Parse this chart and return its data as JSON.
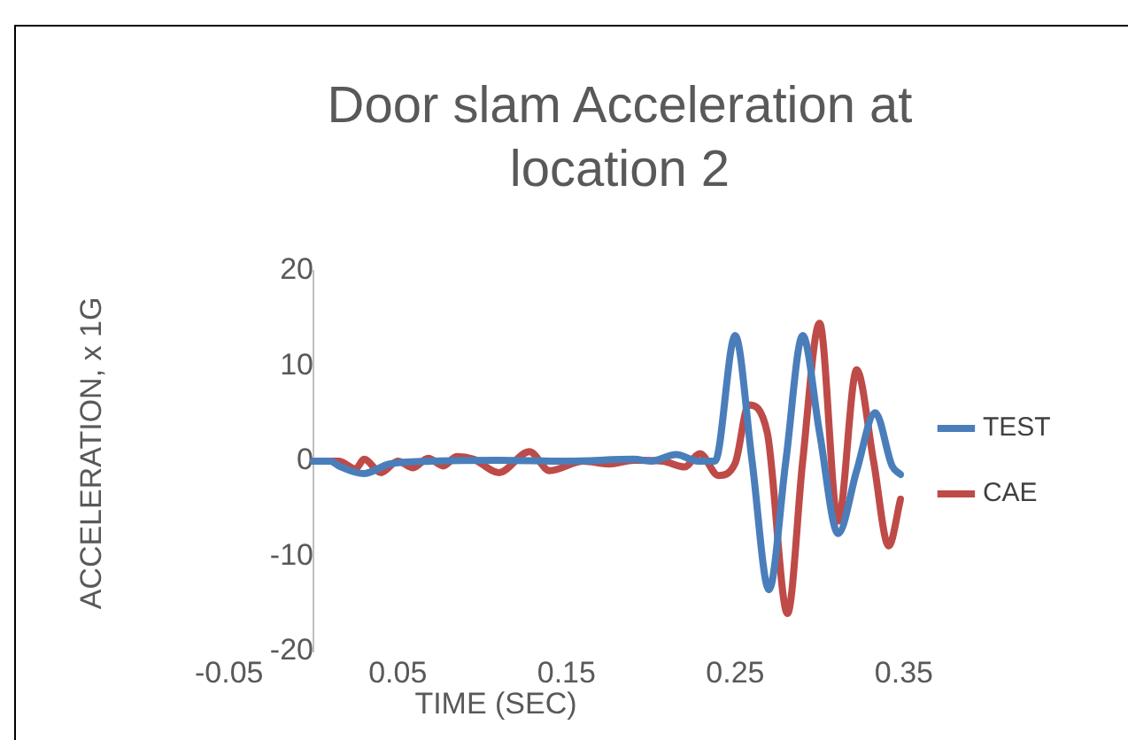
{
  "chart_data": {
    "type": "line",
    "title": "Door slam Acceleration at location 2",
    "xlabel": "TIME (SEC)",
    "ylabel": "ACCELERATION, x 1G",
    "xlim": [
      -0.05,
      0.35
    ],
    "xticks": [
      -0.05,
      0.05,
      0.15,
      0.25,
      0.35
    ],
    "ylim": [
      -20,
      20
    ],
    "yticks": [
      -20,
      -10,
      0,
      10,
      20
    ],
    "grid": false,
    "legend": "right",
    "marker": "none",
    "line_style": "solid",
    "series": [
      {
        "name": "TEST",
        "color": "#4a7ebb",
        "x": [
          0,
          0.01,
          0.015,
          0.03,
          0.045,
          0.07,
          0.11,
          0.15,
          0.19,
          0.2,
          0.215,
          0.228,
          0.238,
          0.25,
          0.26,
          0.27,
          0.28,
          0.29,
          0.3,
          0.311,
          0.322,
          0.333,
          0.343,
          0.348
        ],
        "values": [
          0,
          0,
          -0.5,
          -1.3,
          -0.3,
          0,
          0.1,
          0,
          0.2,
          0,
          0.7,
          0,
          0,
          13.2,
          0,
          -13.5,
          0,
          13.2,
          3,
          -7.6,
          -1,
          5.1,
          -0.5,
          -1.4
        ]
      },
      {
        "name": "CAE",
        "color": "#be4b48",
        "x": [
          0,
          0.015,
          0.025,
          0.03,
          0.04,
          0.05,
          0.059,
          0.068,
          0.077,
          0.085,
          0.095,
          0.11,
          0.128,
          0.14,
          0.16,
          0.175,
          0.19,
          0.207,
          0.22,
          0.229,
          0.24,
          0.25,
          0.258,
          0.269,
          0.281,
          0.29,
          0.3,
          0.311,
          0.322,
          0.332,
          0.341,
          0.348
        ],
        "values": [
          0,
          0,
          -0.8,
          0.2,
          -1.2,
          0,
          -0.7,
          0.3,
          -0.5,
          0.5,
          0.2,
          -1.2,
          1,
          -1,
          0,
          -0.3,
          0.1,
          0,
          -0.6,
          0.8,
          -1.5,
          -0.2,
          5.9,
          3,
          -16,
          0,
          14.5,
          -6.3,
          9.6,
          0,
          -8.9,
          -4
        ]
      }
    ]
  }
}
